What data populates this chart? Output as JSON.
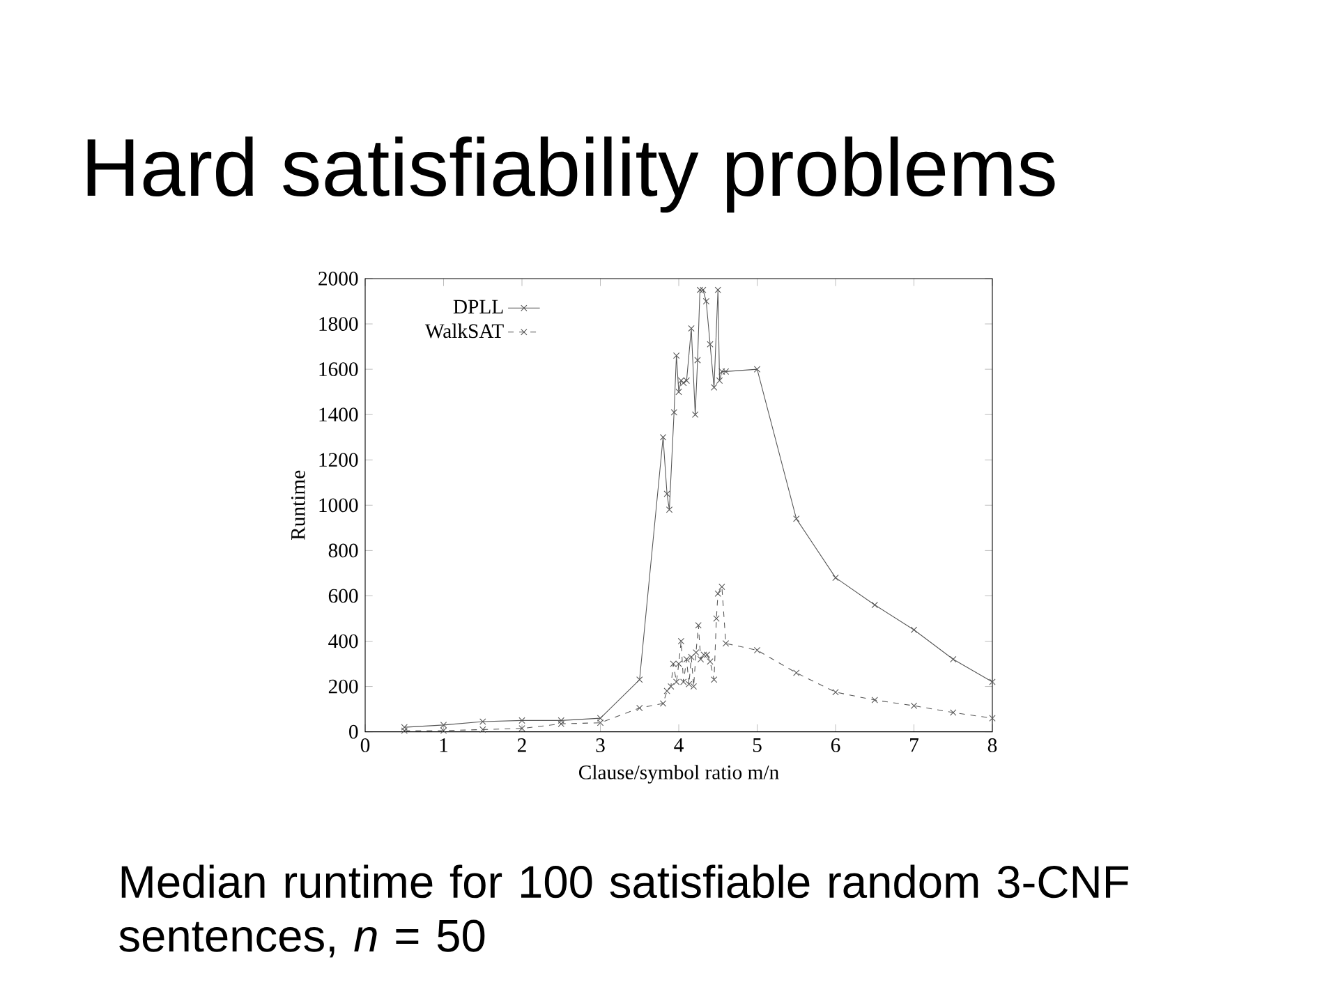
{
  "chart_data": {
    "type": "line",
    "title": "Hard satisfiability problems",
    "xlabel": "Clause/symbol ratio m/n",
    "ylabel": "Runtime",
    "annotations": [
      "Median runtime for 100 satisfiable random 3-CNF sentences, *n* = 50"
    ],
    "xlim": [
      0,
      8
    ],
    "ylim": [
      0,
      2000
    ],
    "xticks": [
      0,
      1,
      2,
      3,
      4,
      5,
      6,
      7,
      8
    ],
    "yticks": [
      0,
      200,
      400,
      600,
      800,
      1000,
      1200,
      1400,
      1600,
      1800,
      2000
    ],
    "grid": false,
    "legend": "top left",
    "marker": "cross",
    "series": [
      {
        "name": "DPLL",
        "color": "#555555",
        "line_style": "solid",
        "x": [
          0.5,
          1,
          1.5,
          2,
          2.5,
          3,
          3.5,
          3.8,
          3.85,
          3.88,
          3.94,
          3.97,
          4.0,
          4.03,
          4.06,
          4.1,
          4.16,
          4.21,
          4.24,
          4.27,
          4.31,
          4.35,
          4.4,
          4.45,
          4.5,
          4.52,
          4.55,
          4.6,
          5,
          5.5,
          6,
          6.5,
          7,
          7.5,
          8
        ],
        "values": [
          20,
          30,
          45,
          50,
          50,
          60,
          230,
          1300,
          1050,
          980,
          1410,
          1660,
          1500,
          1550,
          1540,
          1550,
          1780,
          1400,
          1640,
          1950,
          1950,
          1900,
          1710,
          1520,
          1950,
          1550,
          1590,
          1590,
          1600,
          940,
          680,
          560,
          450,
          320,
          220
        ]
      },
      {
        "name": "WalkSAT",
        "color": "#555555",
        "line_style": "dashed",
        "x": [
          0.5,
          1,
          1.5,
          2,
          2.5,
          3,
          3.5,
          3.8,
          3.85,
          3.9,
          3.93,
          3.97,
          4.0,
          4.03,
          4.06,
          4.1,
          4.13,
          4.16,
          4.19,
          4.22,
          4.25,
          4.28,
          4.32,
          4.36,
          4.4,
          4.45,
          4.48,
          4.5,
          4.55,
          4.6,
          5,
          5.5,
          6,
          6.5,
          7,
          7.5,
          8
        ],
        "values": [
          5,
          5,
          10,
          15,
          35,
          40,
          105,
          125,
          180,
          200,
          300,
          220,
          300,
          400,
          220,
          320,
          210,
          330,
          200,
          350,
          470,
          320,
          340,
          340,
          310,
          230,
          500,
          610,
          640,
          390,
          360,
          260,
          175,
          140,
          115,
          85,
          60
        ]
      }
    ]
  }
}
